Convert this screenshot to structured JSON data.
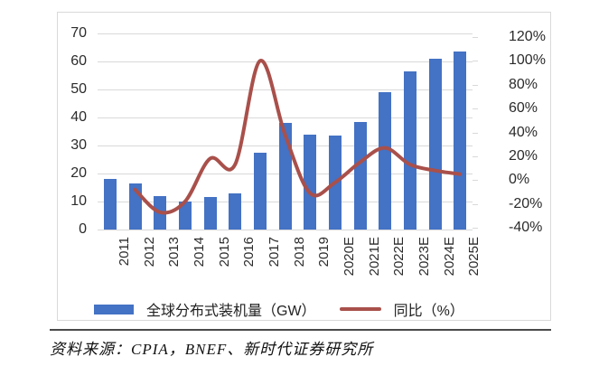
{
  "chart_data": {
    "type": "bar",
    "subtype": "combo-bar-line",
    "categories": [
      "2011",
      "2012",
      "2013",
      "2014",
      "2015",
      "2016",
      "2017",
      "2018",
      "2019",
      "2020E",
      "2021E",
      "2022E",
      "2023E",
      "2024E",
      "2025E"
    ],
    "series": [
      {
        "name": "全球分布式装机量（GW）",
        "type": "bar",
        "axis": "left",
        "color": "#4472c4",
        "values": [
          18,
          16.5,
          12,
          10,
          11.5,
          13,
          27.5,
          38,
          34,
          33.5,
          38.5,
          49,
          56.5,
          61,
          63.5
        ]
      },
      {
        "name": "同比（%）",
        "type": "line",
        "axis": "right",
        "color": "#a9504b",
        "values": [
          null,
          -8,
          -27,
          -18,
          18,
          13,
          100,
          38,
          -11,
          -2,
          15,
          27,
          13,
          8,
          5
        ]
      }
    ],
    "title": "",
    "xlabel": "",
    "ylabel_left": "",
    "ylabel_right": "",
    "left_axis": {
      "min": 0,
      "max": 70,
      "step": 10,
      "ticks": [
        "70",
        "60",
        "50",
        "40",
        "30",
        "20",
        "10",
        "0"
      ]
    },
    "right_axis": {
      "min": -40,
      "max": 120,
      "step": 20,
      "ticks": [
        "120%",
        "100%",
        "80%",
        "60%",
        "40%",
        "20%",
        "0%",
        "-20%",
        "-40%"
      ]
    },
    "grid": true,
    "legend_position": "bottom"
  },
  "legend": {
    "bar_label": "全球分布式装机量（GW）",
    "line_label": "同比（%）"
  },
  "source": {
    "text": "资料来源：CPIA，BNEF、新时代证券研究所"
  },
  "colors": {
    "bar": "#4472c4",
    "line": "#a9504b",
    "grid": "#d9d9d9"
  }
}
